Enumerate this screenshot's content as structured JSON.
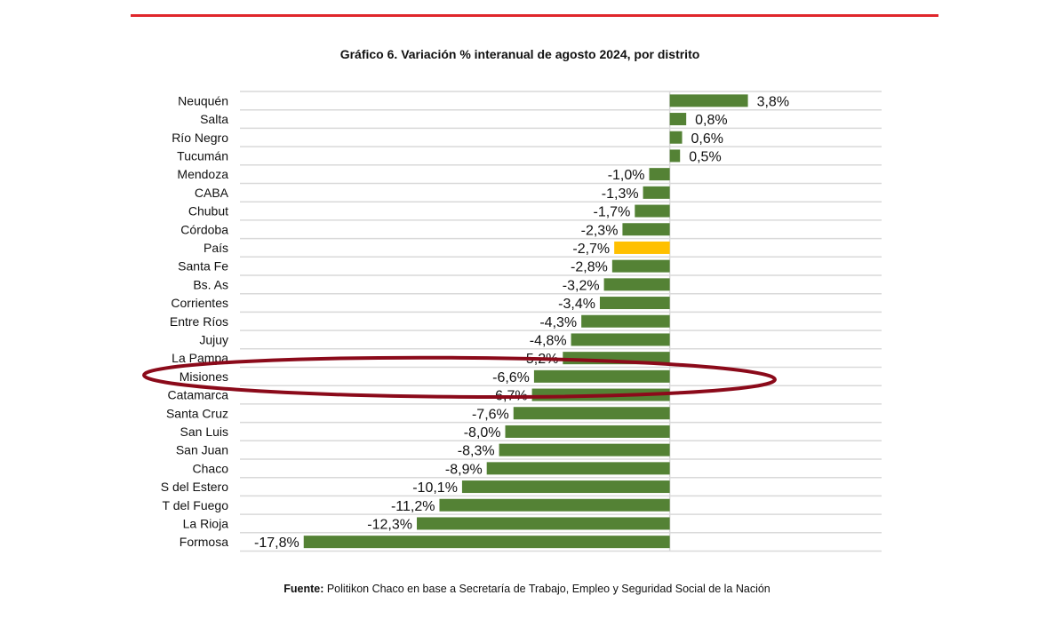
{
  "chart_data": {
    "type": "bar",
    "orientation": "horizontal",
    "title": "Gráfico 6. Variación % interanual de agosto 2024, por distrito",
    "categories": [
      "Neuquén",
      "Salta",
      "Río Negro",
      "Tucumán",
      "Mendoza",
      "CABA",
      "Chubut",
      "Córdoba",
      "País",
      "Santa Fe",
      "Bs. As",
      "Corrientes",
      "Entre Ríos",
      "Jujuy",
      "La Pampa",
      "Misiones",
      "Catamarca",
      "Santa Cruz",
      "San Luis",
      "San Juan",
      "Chaco",
      "S del Estero",
      "T del Fuego",
      "La Rioja",
      "Formosa"
    ],
    "values": [
      3.8,
      0.8,
      0.6,
      0.5,
      -1.0,
      -1.3,
      -1.7,
      -2.3,
      -2.7,
      -2.8,
      -3.2,
      -3.4,
      -4.3,
      -4.8,
      -5.2,
      -6.6,
      -6.7,
      -7.6,
      -8.0,
      -8.3,
      -8.9,
      -10.1,
      -11.2,
      -12.3,
      -17.8
    ],
    "value_labels": [
      "3,8%",
      "0,8%",
      "0,6%",
      "0,5%",
      "-1,0%",
      "-1,3%",
      "-1,7%",
      "-2,3%",
      "-2,7%",
      "-2,8%",
      "-3,2%",
      "-3,4%",
      "-4,3%",
      "-4,8%",
      "-5,2%",
      "-6,6%",
      "-6,7%",
      "-7,6%",
      "-8,0%",
      "-8,3%",
      "-8,9%",
      "-10,1%",
      "-11,2%",
      "-12,3%",
      "-17,8%"
    ],
    "highlight_category": "País",
    "circled_category": "Misiones",
    "xlim": [
      -20.9,
      10.3
    ],
    "grid": true,
    "legend": "none",
    "colors": {
      "bar": "#548235",
      "highlight": "#ffc000",
      "circle": "#8b0a1a",
      "topline": "#e0262b"
    }
  },
  "source": {
    "label": "Fuente:",
    "text": " Politikon Chaco en base a Secretaría de Trabajo, Empleo y Seguridad Social de la Nación"
  }
}
